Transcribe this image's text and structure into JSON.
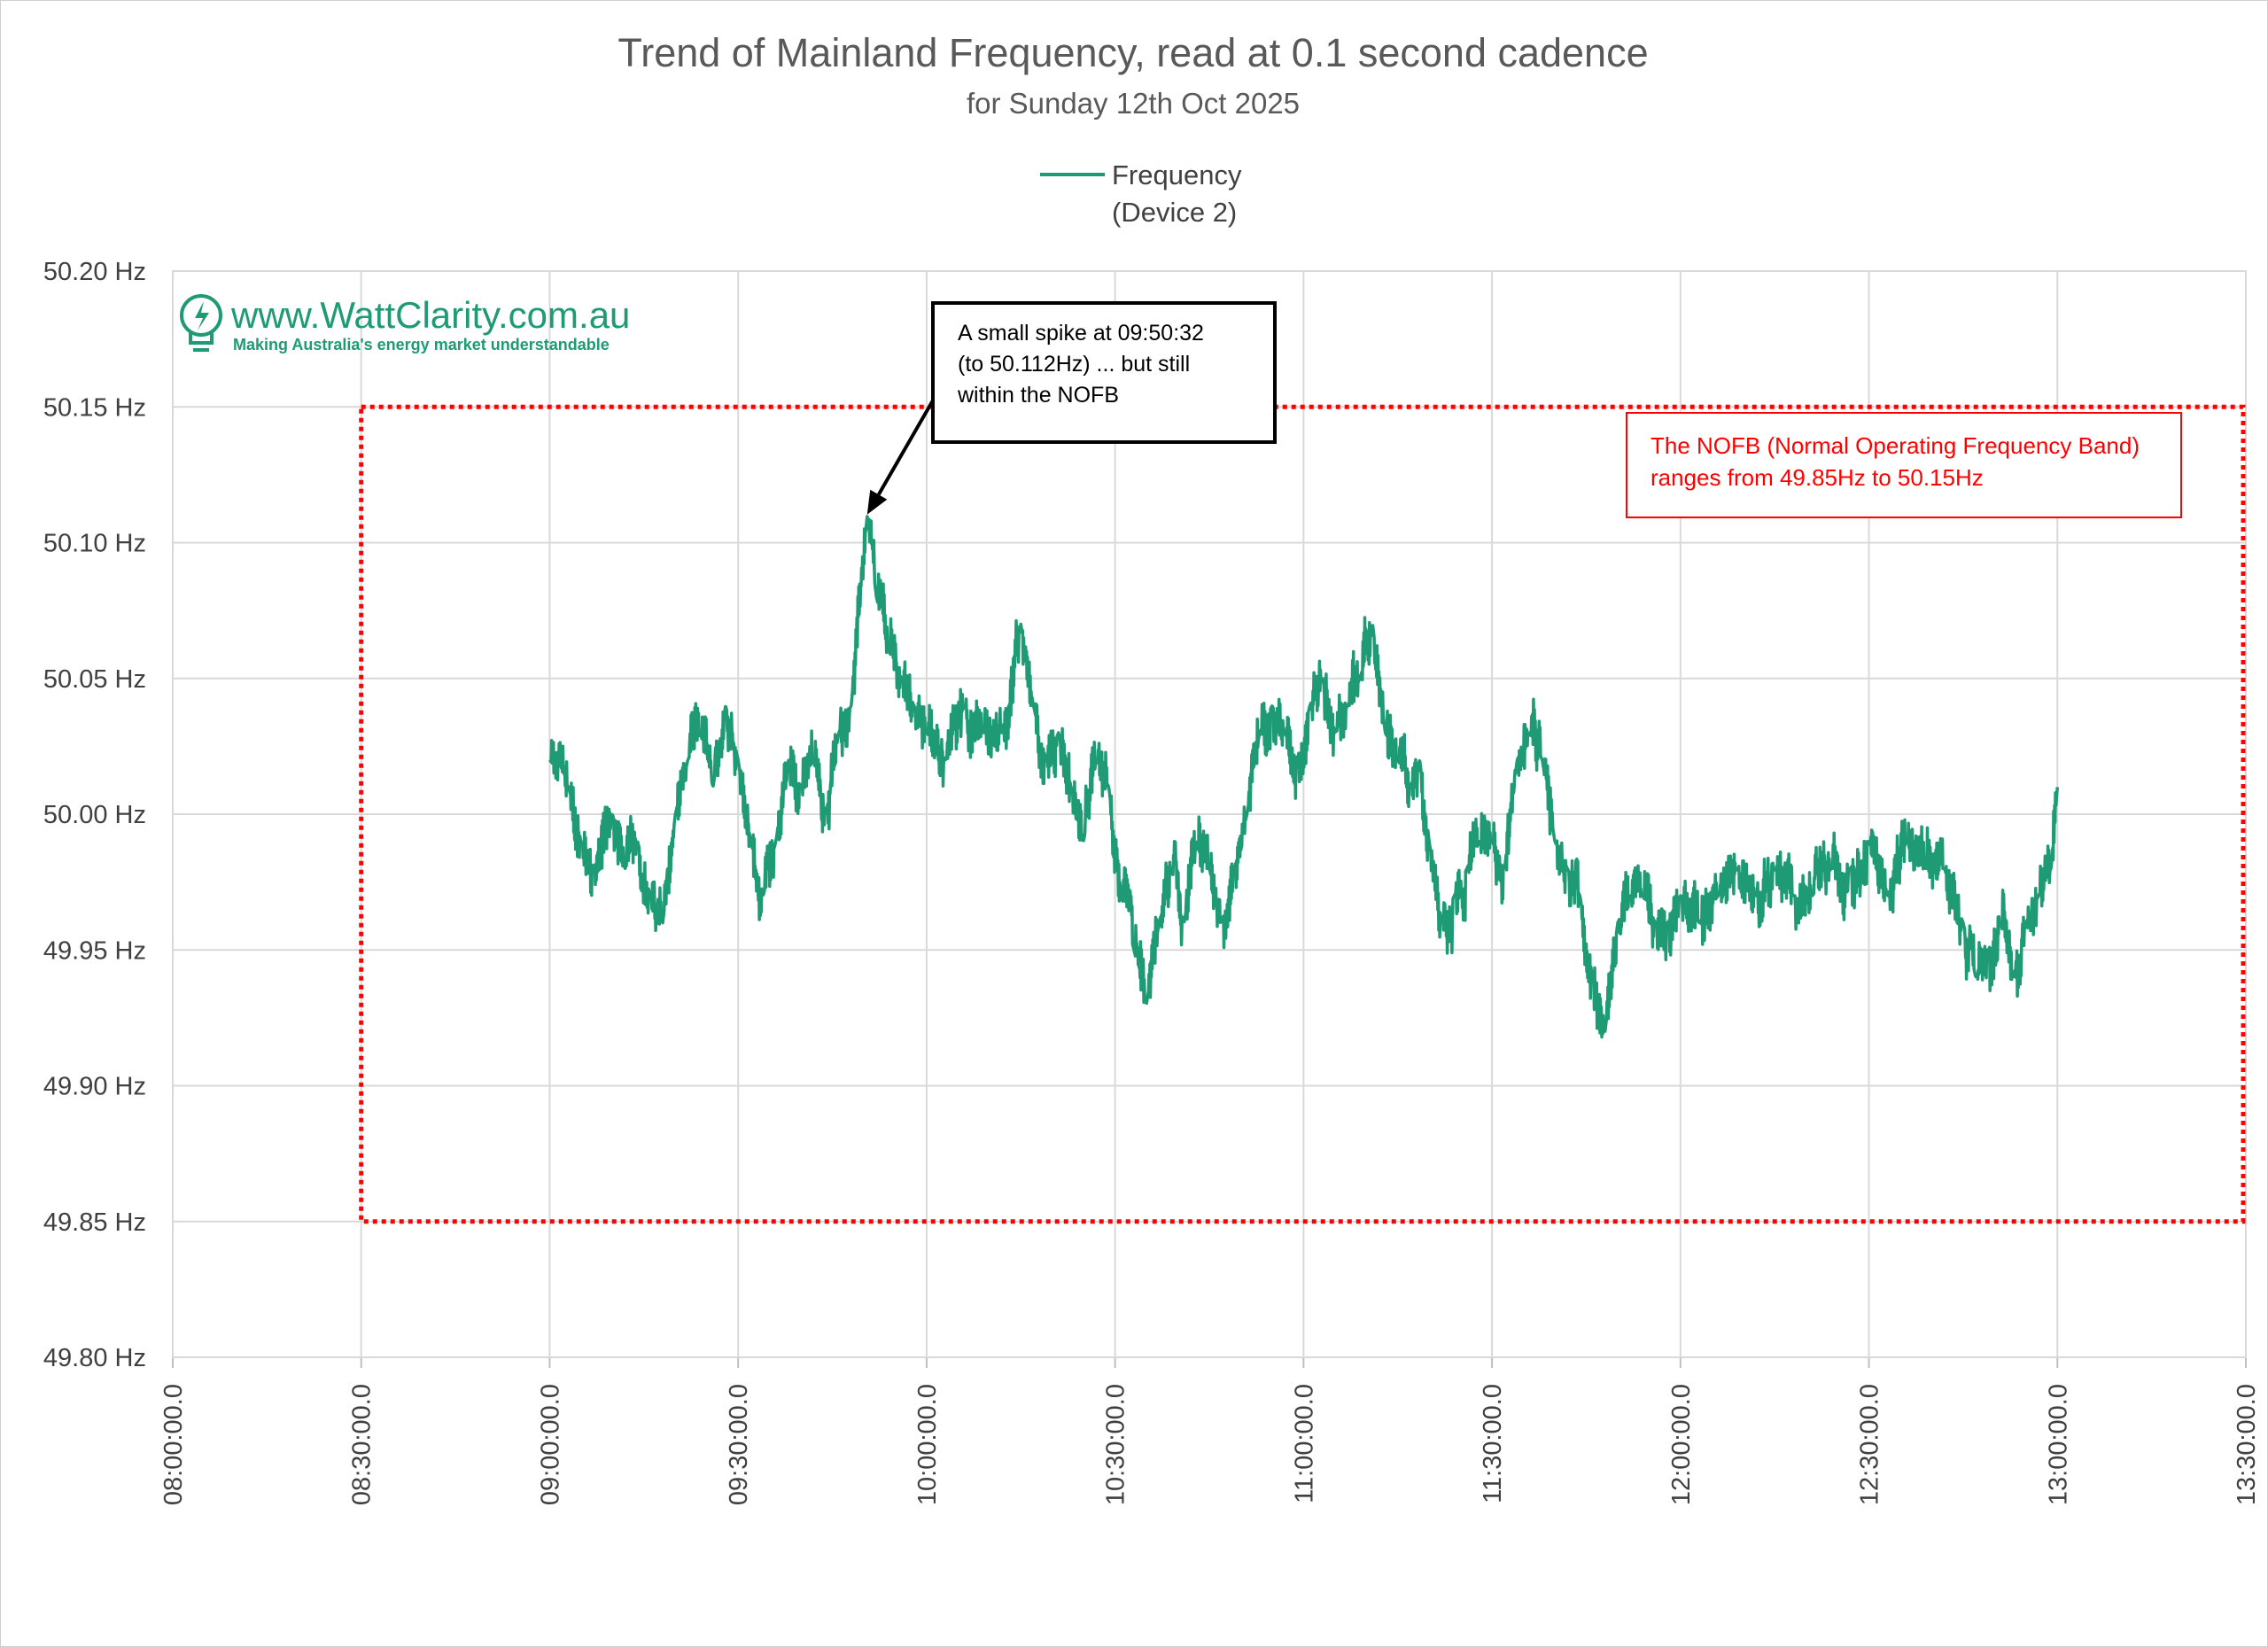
{
  "chart_data": {
    "type": "line",
    "title": "Trend of Mainland Frequency, read at 0.1 second cadence",
    "subtitle": "for Sunday 12th Oct 2025",
    "xlabel": "",
    "ylabel": "",
    "x_range": [
      "08:00:00.0",
      "13:30:00.0"
    ],
    "ylim": [
      49.8,
      50.2
    ],
    "y_ticks": [
      49.8,
      49.85,
      49.9,
      49.95,
      50.0,
      50.05,
      50.1,
      50.15,
      50.2
    ],
    "y_tick_labels": [
      "49.80 Hz",
      "49.85 Hz",
      "49.90 Hz",
      "49.95 Hz",
      "50.00 Hz",
      "50.05 Hz",
      "50.10 Hz",
      "50.15 Hz",
      "50.20 Hz"
    ],
    "x_ticks": [
      "08:00:00.0",
      "08:30:00.0",
      "09:00:00.0",
      "09:30:00.0",
      "10:00:00.0",
      "10:30:00.0",
      "11:00:00.0",
      "11:30:00.0",
      "12:00:00.0",
      "12:30:00.0",
      "13:00:00.0",
      "13:30:00.0"
    ],
    "grid": true,
    "legend_position": "top-center",
    "series": [
      {
        "name": "Frequency (Device 2)",
        "legend_lines": [
          "Frequency",
          "(Device 2)"
        ],
        "color": "#1e9a74",
        "x": [
          "09:00:00.0",
          "09:03:00.0",
          "09:05:00.0",
          "09:07:00.0",
          "09:10:00.0",
          "09:12:00.0",
          "09:14:00.0",
          "09:16:00.0",
          "09:18:00.0",
          "09:20:00.0",
          "09:22:00.0",
          "09:24:00.0",
          "09:26:00.0",
          "09:28:00.0",
          "09:30:00.0",
          "09:32:00.0",
          "09:34:00.0",
          "09:36:00.0",
          "09:38:00.0",
          "09:40:00.0",
          "09:42:00.0",
          "09:44:00.0",
          "09:46:00.0",
          "09:48:00.0",
          "09:50:32.0",
          "09:52:00.0",
          "09:54:00.0",
          "09:56:00.0",
          "09:58:00.0",
          "10:00:00.0",
          "10:03:00.0",
          "10:06:00.0",
          "10:09:00.0",
          "10:12:00.0",
          "10:15:00.0",
          "10:17:00.0",
          "10:19:00.0",
          "10:21:00.0",
          "10:23:00.0",
          "10:25:00.0",
          "10:27:00.0",
          "10:29:00.0",
          "10:31:00.0",
          "10:33:00.0",
          "10:35:00.0",
          "10:37:00.0",
          "10:39:00.0",
          "10:41:00.0",
          "10:43:00.0",
          "10:45:00.0",
          "10:47:00.0",
          "10:49:00.0",
          "10:51:00.0",
          "10:53:00.0",
          "10:55:00.0",
          "10:57:00.0",
          "10:59:00.0",
          "11:01:00.0",
          "11:03:00.0",
          "11:05:00.0",
          "11:07:00.0",
          "11:09:00.0",
          "11:11:00.0",
          "11:13:00.0",
          "11:15:00.0",
          "11:17:00.0",
          "11:18:30.0",
          "11:20:00.0",
          "11:22:00.0",
          "11:24:00.0",
          "11:26:00.0",
          "11:28:00.0",
          "11:30:00.0",
          "11:32:00.0",
          "11:34:00.0",
          "11:36:00.0",
          "11:38:00.0",
          "11:40:00.0",
          "11:42:00.0",
          "11:44:00.0",
          "11:46:00.0",
          "11:48:00.0",
          "11:50:00.0",
          "11:52:00.0",
          "11:54:00.0",
          "11:56:00.0",
          "11:58:00.0",
          "12:00:00.0",
          "12:03:00.0",
          "12:06:00.0",
          "12:09:00.0",
          "12:12:00.0",
          "12:15:00.0",
          "12:18:00.0",
          "12:21:00.0",
          "12:24:00.0",
          "12:27:00.0",
          "12:30:00.0",
          "12:33:00.0",
          "12:36:00.0",
          "12:39:00.0",
          "12:42:00.0",
          "12:45:00.0",
          "12:47:00.0",
          "12:49:00.0",
          "12:51:00.0",
          "12:53:00.0",
          "12:55:00.0",
          "12:57:00.0",
          "12:59:00.0",
          "13:00:00.0"
        ],
        "values": [
          50.02,
          50.01,
          49.99,
          49.98,
          50.0,
          49.98,
          49.99,
          49.97,
          49.96,
          50.0,
          50.02,
          50.03,
          50.01,
          50.04,
          50.02,
          49.99,
          49.97,
          49.99,
          50.02,
          50.01,
          50.02,
          50.0,
          50.03,
          50.04,
          50.11,
          50.08,
          50.06,
          50.05,
          50.04,
          50.03,
          50.02,
          50.04,
          50.03,
          50.03,
          50.07,
          50.04,
          50.02,
          50.03,
          50.01,
          49.99,
          50.02,
          50.01,
          49.97,
          49.95,
          49.93,
          49.96,
          49.98,
          49.96,
          49.99,
          49.98,
          49.96,
          49.98,
          50.0,
          50.03,
          50.04,
          50.03,
          50.02,
          50.04,
          50.05,
          50.03,
          50.04,
          50.05,
          50.07,
          50.03,
          50.02,
          50.01,
          50.02,
          49.99,
          49.96,
          49.97,
          49.98,
          49.99,
          49.99,
          49.98,
          50.02,
          50.03,
          50.02,
          49.99,
          49.98,
          49.97,
          49.94,
          49.92,
          49.96,
          49.97,
          49.97,
          49.96,
          49.96,
          49.97,
          49.96,
          49.97,
          49.98,
          49.97,
          49.98,
          49.97,
          49.97,
          49.98,
          49.98,
          49.99,
          49.97,
          49.99,
          49.98,
          49.98,
          49.96,
          49.94,
          49.95,
          49.96,
          49.94,
          49.96,
          49.97,
          49.98,
          50.01
        ]
      }
    ],
    "annotations": [
      {
        "id": "spike-callout",
        "lines": [
          "A small spike at 09:50:32",
          "(to 50.112Hz) ... but still",
          "within the NOFB"
        ],
        "points_to": {
          "x": "09:50:32.0",
          "y": 50.112
        }
      },
      {
        "id": "nofb-note",
        "lines": [
          "The NOFB  (Normal Operating Frequency Band)",
          "ranges from 49.85Hz to 50.15Hz"
        ],
        "color": "#ff0000"
      }
    ],
    "nofb_band": {
      "x_range": [
        "08:30:00.0",
        "13:30:00.0"
      ],
      "y_range": [
        49.85,
        50.15
      ],
      "color": "#ff0000",
      "style": "dotted"
    }
  },
  "logo": {
    "url_text": "www.WattClarity.com.au",
    "tagline": "Making Australia's energy market understandable",
    "icon": "lightbulb-bolt-icon",
    "color": "#1e9a74"
  }
}
